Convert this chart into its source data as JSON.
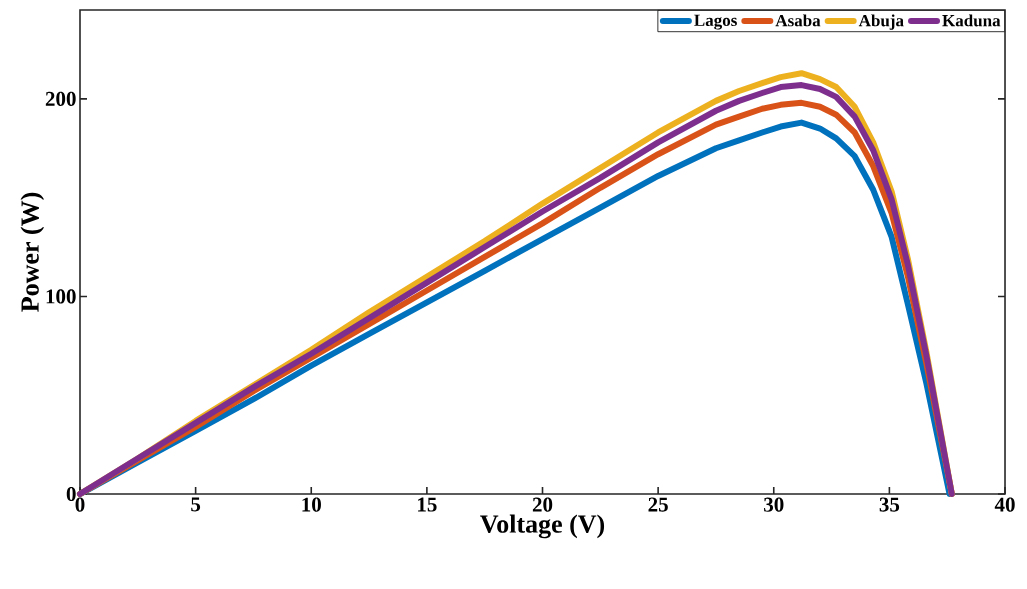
{
  "chart_data": {
    "type": "line",
    "xlabel": "Voltage (V)",
    "ylabel": "Power (W)",
    "xlim": [
      0,
      40
    ],
    "ylim": [
      0,
      245
    ],
    "xticks": [
      0,
      5,
      10,
      15,
      20,
      25,
      30,
      35,
      40
    ],
    "yticks": [
      0,
      100,
      200
    ],
    "grid": false,
    "legend": "top right",
    "marker": "none",
    "line_style": "solid",
    "x": [
      0,
      2.5,
      5,
      7.5,
      10,
      12.5,
      15,
      17.5,
      20,
      22.5,
      25,
      27.5,
      28.5,
      29.5,
      30.3,
      31.2,
      32,
      32.7,
      33.5,
      34.3,
      35.1,
      35.8,
      36.6,
      37.7
    ],
    "series": [
      {
        "name": "Lagos",
        "color": "#0072bd",
        "x": [
          0,
          2.5,
          5,
          7.5,
          10,
          12.5,
          15,
          17.5,
          20,
          22.5,
          25,
          27.5,
          28.5,
          29.5,
          30.3,
          31.2,
          32,
          32.7,
          33.5,
          34.3,
          35.1,
          35.8,
          36.6,
          37.6
        ],
        "values": [
          0,
          16,
          32,
          48,
          65,
          81,
          97,
          113,
          129,
          145,
          161,
          175,
          179,
          183,
          186,
          188,
          185,
          180,
          171,
          154,
          130,
          96,
          56,
          0
        ]
      },
      {
        "name": "Asaba",
        "color": "#d95319",
        "values": [
          0,
          17,
          34,
          52,
          69,
          86,
          103,
          120,
          137,
          155,
          172,
          187,
          191,
          195,
          197,
          198,
          196,
          192,
          183,
          166,
          142,
          110,
          66,
          0
        ]
      },
      {
        "name": "Abuja",
        "color": "#edb120",
        "values": [
          0,
          18,
          37,
          55,
          73,
          92,
          110,
          128,
          147,
          165,
          183,
          199,
          204,
          208,
          211,
          213,
          210,
          206,
          196,
          178,
          153,
          119,
          72,
          0
        ]
      },
      {
        "name": "Kaduna",
        "color": "#7e2f8e",
        "values": [
          0,
          18,
          36,
          54,
          71,
          89,
          107,
          125,
          143,
          160,
          178,
          194,
          199,
          203,
          206,
          207,
          205,
          201,
          191,
          174,
          149,
          116,
          70,
          0
        ]
      }
    ]
  }
}
